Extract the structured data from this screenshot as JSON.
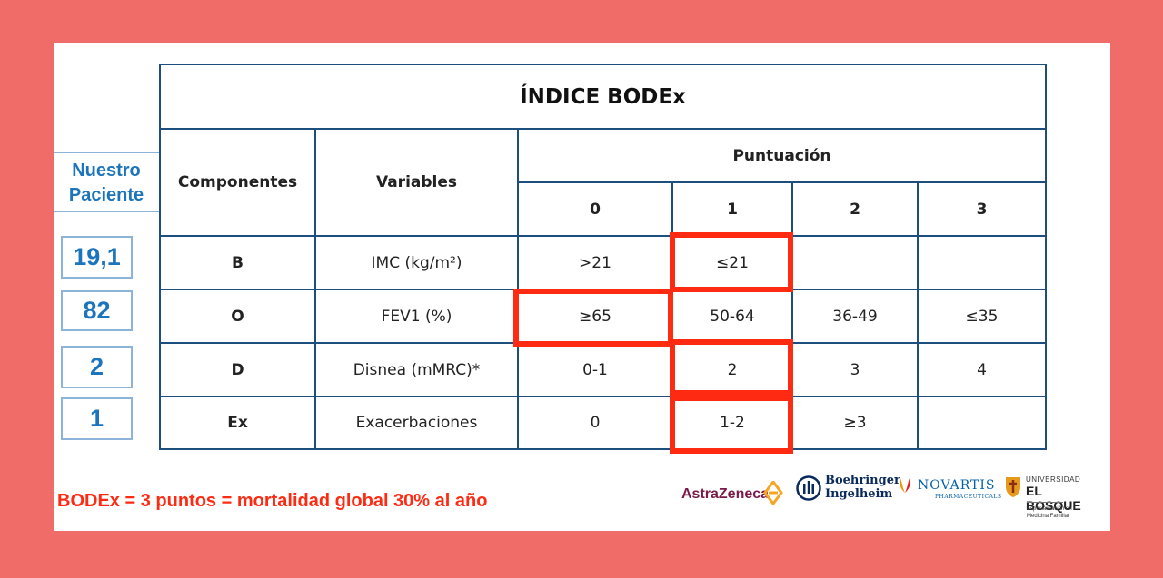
{
  "table": {
    "title": "ÍNDICE BODEx",
    "headers": {
      "componentes": "Componentes",
      "variables": "Variables",
      "puntuacion": "Puntuación",
      "scores": [
        "0",
        "1",
        "2",
        "3"
      ]
    },
    "rows": [
      {
        "component": "B",
        "variable": "IMC (kg/m²)",
        "cells": [
          ">21",
          "≤21",
          "",
          ""
        ]
      },
      {
        "component": "O",
        "variable": "FEV1 (%)",
        "cells": [
          "≥65",
          "50-64",
          "36-49",
          "≤35"
        ]
      },
      {
        "component": "D",
        "variable": "Disnea (mMRC)*",
        "cells": [
          "0-1",
          "2",
          "3",
          "4"
        ]
      },
      {
        "component": "Ex",
        "variable": "Exacerbaciones",
        "cells": [
          "0",
          "1-2",
          "≥3",
          ""
        ]
      }
    ]
  },
  "patient": {
    "header_line1": "Nuestro",
    "header_line2": "Paciente",
    "values": [
      "19,1",
      "82",
      "2",
      "1"
    ]
  },
  "footer": "BODEx = 3 puntos = mortalidad global 30% al año",
  "logos": {
    "astrazeneca": "AstraZeneca",
    "boehringer_line1": "Boehringer",
    "boehringer_line2": "Ingelheim",
    "novartis": "NOVARTIS",
    "novartis_sub": "PHARMACEUTICALS",
    "bosque_line1": "UNIVERSIDAD",
    "bosque_line2": "EL BOSQUE",
    "bosque_sub1": "Especialización en",
    "bosque_sub2": "Medicina Familiar"
  },
  "colors": {
    "background": "#f06c68",
    "table_lines": "#1d4f7e",
    "highlight": "#ff2a12",
    "patient_text": "#1c75bc"
  }
}
